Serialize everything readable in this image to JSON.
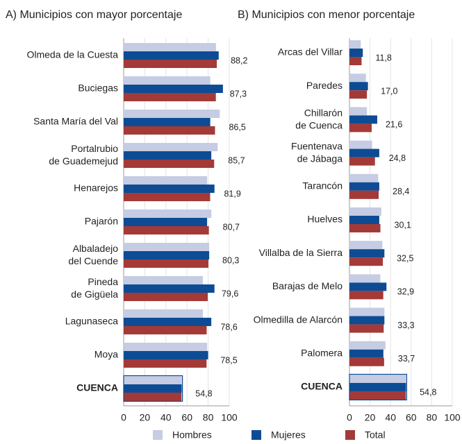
{
  "chart_data": [
    {
      "type": "hbar",
      "title": "A) Municipios con mayor porcentaje",
      "categories": [
        "Olmeda de la Cuesta",
        "Buciegas",
        "Santa María del Val",
        "Portalrubio\nde Guademejud",
        "Henarejos",
        "Pajarón",
        "Albaladejo\ndel Cuende",
        "Pineda\nde Gigüela",
        "Lagunaseca",
        "Moya",
        "CUENCA"
      ],
      "series": [
        {
          "name": "Hombres",
          "color": "#c5cce3",
          "values": [
            87.4,
            82,
            91,
            89,
            79,
            83,
            81,
            75,
            75,
            79,
            55
          ]
        },
        {
          "name": "Mujeres",
          "color": "#0d4c94",
          "values": [
            90,
            94,
            82,
            83,
            86,
            79,
            81,
            86,
            83,
            80,
            55
          ]
        },
        {
          "name": "Total",
          "color": "#a33a37",
          "values": [
            88.2,
            87.3,
            86.5,
            85.7,
            81.9,
            80.7,
            80.3,
            79.6,
            78.6,
            78.5,
            54.8
          ],
          "value_labels": [
            "88,2",
            "87,3",
            "86,5",
            "85,7",
            "81,9",
            "80,7",
            "80,3",
            "79,6",
            "78,6",
            "78,5",
            "54,8"
          ]
        }
      ],
      "xlim": [
        0,
        100
      ],
      "xticks": [
        0,
        20,
        40,
        60,
        80,
        100
      ],
      "grid": true
    },
    {
      "type": "hbar",
      "title": "B) Municipios con menor porcentaje",
      "categories": [
        "Arcas del Villar",
        "Paredes",
        "Chillarón\nde Cuenca",
        "Fuentenava\nde Jábaga",
        "Tarancón",
        "Huelves",
        "Villalba de la Sierra",
        "Barajas de Melo",
        "Olmedilla de Alarcón",
        "Palomera",
        "CUENCA"
      ],
      "series": [
        {
          "color": "#c5cce3",
          "values": [
            11,
            16,
            17,
            22,
            28,
            31,
            32,
            30,
            34,
            35,
            55
          ]
        },
        {
          "color": "#0d4c94",
          "values": [
            13,
            18,
            27,
            29,
            29,
            29,
            34,
            36,
            34,
            33,
            55
          ]
        },
        {
          "color": "#a33a37",
          "values": [
            11.8,
            17.0,
            21.6,
            24.8,
            28.4,
            30.1,
            32.5,
            32.9,
            33.3,
            33.7,
            54.8
          ],
          "value_labels": [
            "11,8",
            "17,0",
            "21,6",
            "24,8",
            "28,4",
            "30,1",
            "32,5",
            "32,9",
            "33,3",
            "33,7",
            "54,8"
          ]
        }
      ],
      "xlim": [
        0,
        100
      ],
      "xticks": [
        0,
        20,
        40,
        60,
        80,
        100
      ],
      "grid": true
    }
  ]
}
